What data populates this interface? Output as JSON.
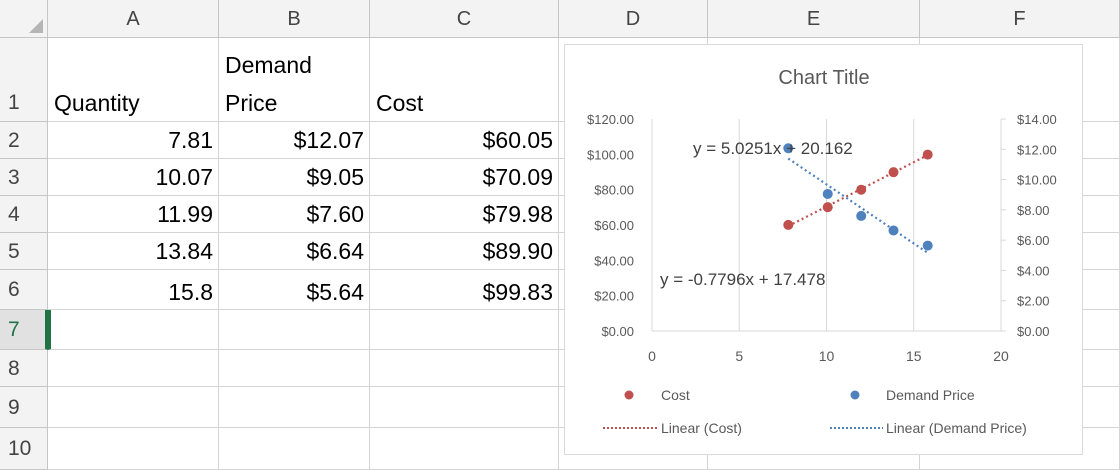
{
  "sheet": {
    "columns": [
      "A",
      "B",
      "C",
      "D",
      "E",
      "F"
    ],
    "rows": [
      "1",
      "2",
      "3",
      "4",
      "5",
      "6",
      "7",
      "8",
      "9",
      "10"
    ],
    "selected_row": "7",
    "headers": {
      "quantity": "Quantity",
      "demand_price_line1": "Demand",
      "demand_price_line2": "Price",
      "cost": "Cost"
    },
    "data": [
      {
        "quantity": "7.81",
        "price": "$12.07",
        "cost": "$60.05"
      },
      {
        "quantity": "10.07",
        "price": "$9.05",
        "cost": "$70.09"
      },
      {
        "quantity": "11.99",
        "price": "$7.60",
        "cost": "$79.98"
      },
      {
        "quantity": "13.84",
        "price": "$6.64",
        "cost": "$89.90"
      },
      {
        "quantity": "15.8",
        "price": "$5.64",
        "cost": "$99.83"
      }
    ]
  },
  "chart_data": {
    "type": "scatter",
    "title": "Chart Title",
    "xlim": [
      0,
      20
    ],
    "x_ticks": [
      "0",
      "5",
      "10",
      "15",
      "20"
    ],
    "y_left_lim": [
      0,
      120
    ],
    "y_left_ticks": [
      "$0.00",
      "$20.00",
      "$40.00",
      "$60.00",
      "$80.00",
      "$100.00",
      "$120.00"
    ],
    "y_right_lim": [
      0,
      14
    ],
    "y_right_ticks": [
      "$0.00",
      "$2.00",
      "$4.00",
      "$6.00",
      "$8.00",
      "$10.00",
      "$12.00",
      "$14.00"
    ],
    "grid": "vertical",
    "legend_position": "bottom",
    "series": [
      {
        "name": "Cost",
        "axis": "left",
        "color": "#c0504d",
        "x": [
          7.81,
          10.07,
          11.99,
          13.84,
          15.8
        ],
        "y": [
          60.05,
          70.09,
          79.98,
          89.9,
          99.83
        ]
      },
      {
        "name": "Demand Price",
        "axis": "right",
        "color": "#4f81bd",
        "x": [
          7.81,
          10.07,
          11.99,
          13.84,
          15.8
        ],
        "y": [
          12.07,
          9.05,
          7.6,
          6.64,
          5.64
        ]
      }
    ],
    "trendlines": [
      {
        "name": "Linear (Cost)",
        "series": "Cost",
        "axis": "left",
        "color": "#c0504d",
        "slope": 5.0251,
        "intercept": 20.162,
        "equation": "y = 5.0251x + 20.162"
      },
      {
        "name": "Linear (Demand Price)",
        "series": "Demand Price",
        "axis": "right",
        "color": "#4f81bd",
        "slope": -0.7796,
        "intercept": 17.478,
        "equation": "y = -0.7796x + 17.478"
      }
    ]
  }
}
